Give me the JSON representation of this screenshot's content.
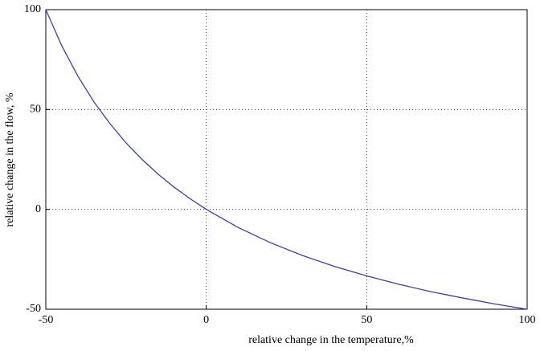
{
  "chart_data": {
    "type": "line",
    "x_label": "relative change in the temperature,%",
    "y_label": "relative change in the flow, %",
    "x": [
      -50,
      -45,
      -40,
      -35,
      -30,
      -25,
      -20,
      -15,
      -10,
      -5,
      0,
      10,
      20,
      30,
      40,
      50,
      60,
      70,
      80,
      90,
      100
    ],
    "series": [
      {
        "color": "#3c3cb4",
        "values": [
          100,
          81.8,
          66.7,
          53.8,
          42.9,
          33.3,
          25,
          17.6,
          11.1,
          5.3,
          0,
          -9.1,
          -16.7,
          -23.1,
          -28.6,
          -33.3,
          -37.5,
          -41.2,
          -44.4,
          -47.4,
          -50
        ]
      }
    ],
    "xlim": [
      -50,
      100
    ],
    "xticks": [
      -50,
      0,
      50,
      100
    ],
    "ylim": [
      -50,
      100
    ],
    "yticks": [
      -50,
      0,
      50,
      100
    ],
    "grid": true
  }
}
